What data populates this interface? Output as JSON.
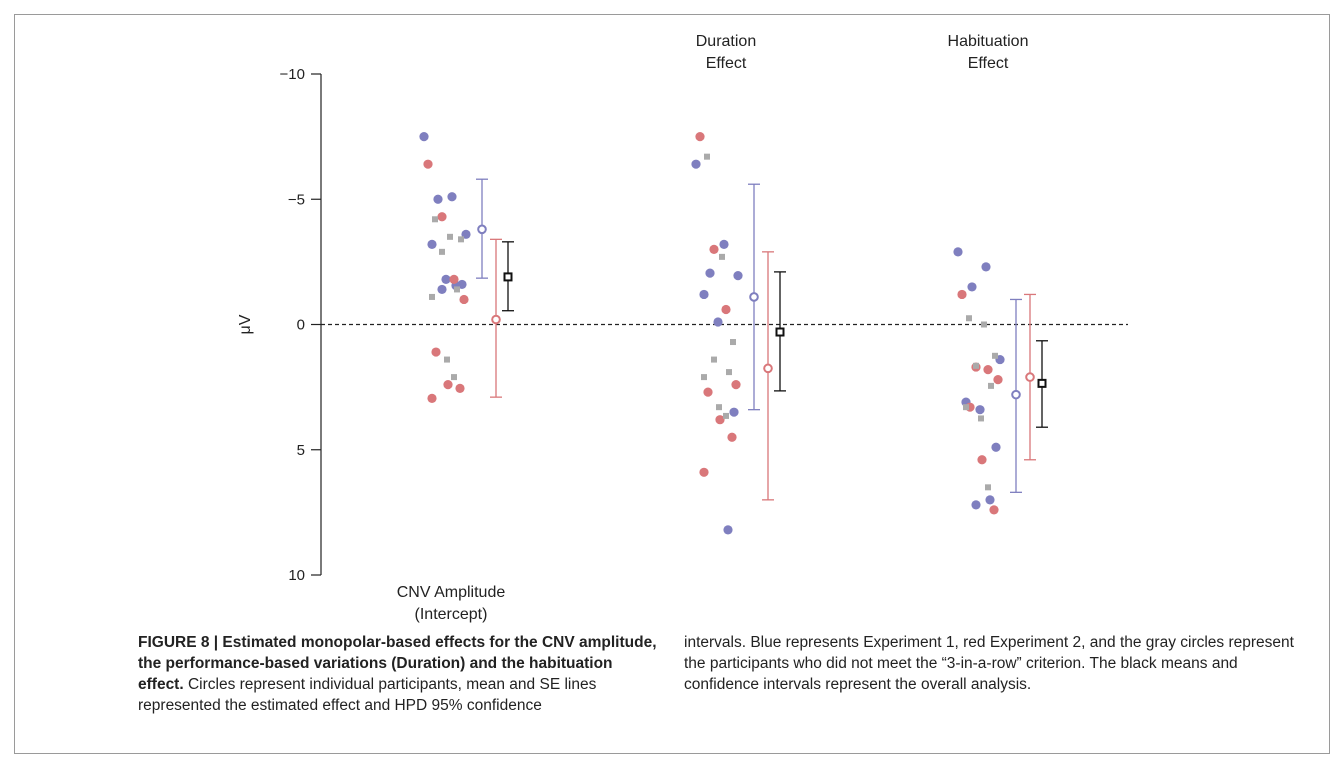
{
  "chart_data": {
    "type": "scatter",
    "ylabel": "μV",
    "ylim": [
      -10,
      10
    ],
    "y_inverted": true,
    "yticks": [
      -10,
      -5,
      0,
      5,
      10
    ],
    "ytick_labels": [
      "−10",
      "−5",
      "0",
      "5",
      "10"
    ],
    "reference_line": 0,
    "groups": [
      {
        "id": "cnv",
        "label_lines": [
          "CNV Amplitude",
          "(Intercept)"
        ],
        "label_position": "bottom"
      },
      {
        "id": "duration",
        "label_lines": [
          "Duration",
          "Effect"
        ],
        "label_position": "top"
      },
      {
        "id": "habituation",
        "label_lines": [
          "Habituation",
          "Effect"
        ],
        "label_position": "top"
      }
    ],
    "colors": {
      "experiment1": "#7f7fbf",
      "experiment2": "#d9777a",
      "excluded": "#aaaaaa",
      "overall": "#111111"
    },
    "series": [
      {
        "name": "Experiment 1",
        "color": "#7f7fbf",
        "points": {
          "cnv": [
            -7.5,
            -5.1,
            -5.0,
            -3.6,
            -3.2,
            -1.8,
            -1.6,
            -1.55,
            -1.4
          ],
          "duration": [
            -6.4,
            -3.2,
            -2.05,
            -1.95,
            -1.2,
            -0.1,
            3.5,
            8.2
          ],
          "habituation": [
            -2.9,
            -2.3,
            -1.5,
            1.4,
            3.1,
            3.4,
            4.9,
            7.0,
            7.2
          ]
        },
        "estimate": {
          "cnv": -3.8,
          "duration": -1.1,
          "habituation": 2.8
        },
        "interval": {
          "cnv": [
            -5.8,
            -1.85
          ],
          "duration": [
            -5.6,
            3.4
          ],
          "habituation": [
            -1.0,
            6.7
          ]
        }
      },
      {
        "name": "Experiment 2",
        "color": "#d9777a",
        "points": {
          "cnv": [
            -6.4,
            -4.3,
            -1.8,
            -1.0,
            1.1,
            2.4,
            2.55,
            2.95
          ],
          "duration": [
            -7.5,
            -3.0,
            -0.6,
            2.4,
            2.7,
            3.8,
            4.5,
            5.9
          ],
          "habituation": [
            -1.2,
            1.7,
            1.8,
            2.2,
            3.3,
            5.4,
            7.4
          ]
        },
        "estimate": {
          "cnv": -0.2,
          "duration": 1.75,
          "habituation": 2.1
        },
        "interval": {
          "cnv": [
            -3.4,
            2.9
          ],
          "duration": [
            -2.9,
            7.0
          ],
          "habituation": [
            -1.2,
            5.4
          ]
        }
      },
      {
        "name": "Excluded participants",
        "color": "#aaaaaa",
        "points": {
          "cnv": [
            -4.2,
            -3.5,
            -3.4,
            -2.9,
            -1.4,
            -1.1,
            1.4,
            2.1
          ],
          "duration": [
            -6.7,
            -2.7,
            0.7,
            1.4,
            1.9,
            2.1,
            3.3,
            3.65
          ],
          "habituation": [
            -0.25,
            0.0,
            1.25,
            1.65,
            2.45,
            3.3,
            3.75,
            6.5
          ]
        }
      },
      {
        "name": "Overall",
        "color": "#111111",
        "estimate": {
          "cnv": -1.9,
          "duration": 0.3,
          "habituation": 2.35
        },
        "interval": {
          "cnv": [
            -3.3,
            -0.55
          ],
          "duration": [
            -2.1,
            2.65
          ],
          "habituation": [
            0.65,
            4.1
          ]
        }
      }
    ]
  },
  "caption": {
    "title": "FIGURE 8 | Estimated monopolar-based effects for the CNV amplitude, the performance-based variations (Duration) and the habituation effect.",
    "body_left": " Circles represent individual participants, mean and SE lines represented the estimated effect and HPD 95% confidence",
    "body_right": "intervals. Blue represents Experiment 1, red Experiment 2, and the gray circles represent the participants who did not meet the “3-in-a-row” criterion. The black means and confidence intervals represent the overall analysis."
  }
}
